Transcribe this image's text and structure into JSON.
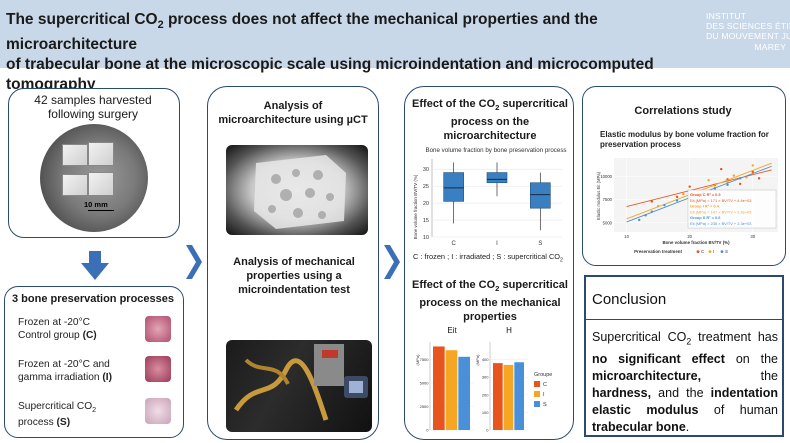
{
  "header": {
    "title_line1": "The supercritical CO",
    "title_sub": "2",
    "title_line1_rest": " process does not affect the mechanical properties and the microarchitecture",
    "title_line2": "of trabecular bone at the microscopic scale using microindentation and microcomputed tomography",
    "logo_lines": [
      "INSTITUT",
      "DES SCIENCES ÉTIENNE",
      "DU MOUVEMENT JULES",
      "MAREY"
    ]
  },
  "panel1": {
    "title": "42 samples harvested following surgery",
    "scale_label": "10 mm"
  },
  "panel2": {
    "title": "3 bone preservation processes",
    "items": [
      {
        "line1": "Frozen at -20°C",
        "line2": "Control group ",
        "code": "(C)"
      },
      {
        "line1": "Frozen at -20°C and",
        "line2": "gamma irradiation ",
        "code": "(I)"
      },
      {
        "line1": "Supercritical CO",
        "sub": "2",
        "line2": "process ",
        "code": "(S)"
      }
    ]
  },
  "panel3": {
    "title1": "Analysis of microarchitecture using µCT",
    "title2": "Analysis of mechanical properties using a microindentation test"
  },
  "panel4": {
    "title1_a": "Effect of the CO",
    "title1_sub": "2",
    "title1_b": " supercritical process on the microarchitecture",
    "title2_a": "Effect of the CO",
    "title2_sub": "2",
    "title2_b": " supercritical process on the mechanical properties",
    "legend_note": "C : frozen ; I : irradiated ; S : supercritical CO",
    "legend_note_sub": "2"
  },
  "panel5": {
    "title": "Correlations study",
    "chart_title": "Elastic modulus by bone volume fraction for preservation process"
  },
  "conclusion": {
    "title": "Conclusion",
    "p1": "Supercritical CO",
    "p1_sub": "2",
    "p2": " treatment has ",
    "p3": "no significant effect",
    "p4": " on the ",
    "p5": "microarchitecture,",
    "p6": " the ",
    "p7": "hardness,",
    "p8": " and the ",
    "p9": "indentation elastic modulus",
    "p10": " of human ",
    "p11": "trabecular bone",
    "p12": "."
  },
  "colors": {
    "header_bg": "#c9d8e8",
    "panel_border": "#2a4a72",
    "arrow": "#3b6fb6",
    "group_C": "#e8541e",
    "group_I": "#f5a623",
    "group_S": "#4a90d9",
    "box_fill": "#3a7fc1"
  },
  "chart_data": [
    {
      "type": "box",
      "title": "Bone volume fraction by bone preservation process",
      "ylabel": "Bone volume fraction BV/TV (%)",
      "categories": [
        "C",
        "I",
        "S"
      ],
      "yticks": [
        10,
        15,
        20,
        25,
        30
      ],
      "ylim": [
        10,
        33
      ],
      "boxes": [
        {
          "name": "C",
          "q1": 20.5,
          "median": 24.5,
          "q3": 29,
          "min": 14,
          "max": 32
        },
        {
          "name": "I",
          "q1": 26,
          "median": 27,
          "q3": 29,
          "min": 22,
          "max": 32
        },
        {
          "name": "S",
          "q1": 18.5,
          "median": 22.5,
          "q3": 26,
          "min": 12,
          "max": 29
        }
      ]
    },
    {
      "type": "bar",
      "panels": [
        "Eit",
        "H"
      ],
      "categories": [
        "C",
        "I",
        "S"
      ],
      "legend_title": "Groupe",
      "series": [
        {
          "panel": "Eit",
          "values": [
            8900,
            8500,
            7800
          ],
          "ylabel": "(MPa)",
          "yticks": [
            0,
            2500,
            5000,
            7500
          ]
        },
        {
          "panel": "H",
          "values": [
            380,
            370,
            385
          ],
          "ylabel": "(MPa)",
          "yticks": [
            0,
            100,
            200,
            300,
            400
          ]
        }
      ]
    },
    {
      "type": "scatter",
      "title": "Elastic modulus by bone volume fraction for preservation process",
      "xlabel": "Bone volume fraction BV/TV (%)",
      "ylabel": "Elastic modulus Eit (MPa)",
      "xticks": [
        10,
        20,
        30
      ],
      "yticks": [
        5000,
        7500,
        10000
      ],
      "legend_title": "Preservation treatment",
      "legend": [
        "C",
        "I",
        "S"
      ],
      "annotations": [
        "Group C    R² = 0.3",
        "Eit (MPa) = 171 × BV/TV + 4.4e+03",
        "Group I    R² = 0.4",
        "Eit (MPa) = 147 × BV/TV + 2.2e+03",
        "Group S    R² = 0.6",
        "Eit (MPa) = 235 × BV/TV + 2.3e+03"
      ],
      "series": [
        {
          "name": "C",
          "points": [
            [
              14,
              7300
            ],
            [
              18,
              7800
            ],
            [
              20,
              8900
            ],
            [
              22,
              8200
            ],
            [
              24,
              9100
            ],
            [
              26,
              9700
            ],
            [
              28,
              9200
            ],
            [
              30,
              10500
            ],
            [
              31,
              9800
            ],
            [
              25,
              10800
            ]
          ]
        },
        {
          "name": "I",
          "points": [
            [
              15,
              6800
            ],
            [
              19,
              8100
            ],
            [
              22,
              7600
            ],
            [
              24,
              8800
            ],
            [
              26,
              9400
            ],
            [
              27,
              10100
            ],
            [
              29,
              9900
            ],
            [
              30,
              11200
            ],
            [
              23,
              9600
            ]
          ]
        },
        {
          "name": "S",
          "points": [
            [
              12,
              5300
            ],
            [
              14,
              6200
            ],
            [
              16,
              6900
            ],
            [
              18,
              7400
            ],
            [
              20,
              7700
            ],
            [
              22,
              8300
            ],
            [
              24,
              8700
            ],
            [
              26,
              9100
            ],
            [
              28,
              9800
            ],
            [
              13,
              5800
            ]
          ]
        }
      ]
    }
  ]
}
